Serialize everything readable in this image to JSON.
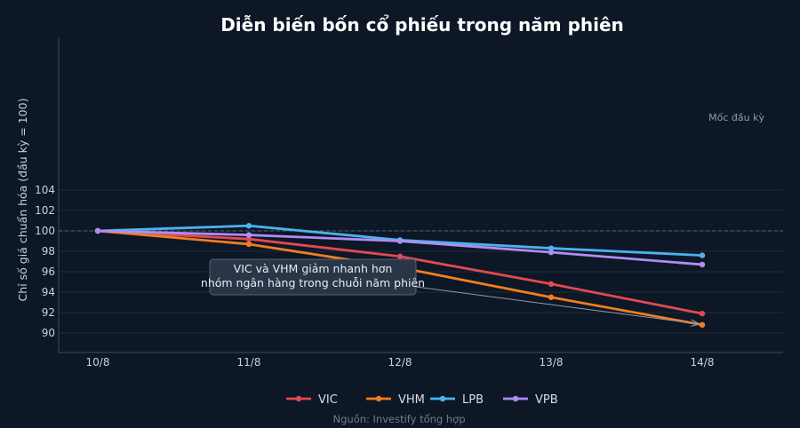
{
  "chart_data": {
    "type": "line",
    "title": "Diễn biến bốn cổ phiếu trong năm phiên",
    "xlabel": "",
    "ylabel": "Chỉ số giá chuẩn hóa (đầu kỳ = 100)",
    "categories": [
      "10/8",
      "11/8",
      "12/8",
      "13/8",
      "14/8"
    ],
    "ylim": [
      89,
      104
    ],
    "yticks": [
      90,
      92,
      94,
      96,
      98,
      100,
      102,
      104
    ],
    "grid": true,
    "legend_position": "bottom-center",
    "series": [
      {
        "name": "VIC",
        "color": "#e04a52",
        "values": [
          100,
          99.2,
          97.5,
          94.8,
          91.9
        ]
      },
      {
        "name": "VHM",
        "color": "#f07f1e",
        "values": [
          100,
          98.7,
          96.4,
          93.5,
          90.8
        ]
      },
      {
        "name": "LPB",
        "color": "#4ab3ee",
        "values": [
          100,
          100.5,
          99.1,
          98.3,
          97.6
        ]
      },
      {
        "name": "VPB",
        "color": "#b08cf5",
        "values": [
          100,
          99.6,
          99.0,
          97.9,
          96.7
        ]
      }
    ],
    "reference_line": {
      "value": 100,
      "label": "Mốc đầu kỳ"
    },
    "annotation": {
      "lines": [
        "VIC và VHM giảm nhanh hơn",
        "nhóm ngân hàng trong chuỗi năm phiên"
      ],
      "target_series": "VHM",
      "target_category": "14/8"
    },
    "source": "Nguồn: Investify tổng hợp"
  }
}
